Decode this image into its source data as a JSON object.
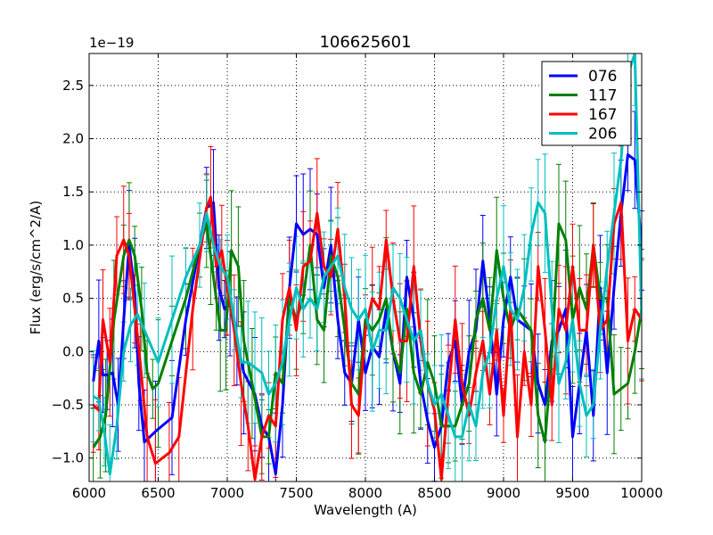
{
  "chart_data": {
    "type": "line",
    "title": "106625601",
    "xlabel": "Wavelength (A)",
    "ylabel": "Flux (erg/s/cm^2/A)",
    "offset_text": "1e−19",
    "scale": 1e-19,
    "xlim": [
      6000,
      10000
    ],
    "ylim": [
      -1.22,
      2.8
    ],
    "xticks": [
      6000,
      6500,
      7000,
      7500,
      8000,
      8500,
      9000,
      9500,
      10000
    ],
    "yticks": [
      -1.0,
      -0.5,
      0.0,
      0.5,
      1.0,
      1.5,
      2.0,
      2.5
    ],
    "ytick_labels": [
      "−1.0",
      "−0.5",
      "0.0",
      "0.5",
      "1.0",
      "1.5",
      "2.0",
      "2.5"
    ],
    "grid": true,
    "legend_position": "top-right",
    "series": [
      {
        "name": "076",
        "color": "#0000ff",
        "points": [
          [
            6030,
            -0.28
          ],
          [
            6070,
            0.1
          ],
          [
            6100,
            -0.22
          ],
          [
            6130,
            -0.22
          ],
          [
            6170,
            -0.2
          ],
          [
            6210,
            -0.5
          ],
          [
            6250,
            0.3
          ],
          [
            6290,
            1.0
          ],
          [
            6330,
            0.55
          ],
          [
            6360,
            -0.3
          ],
          [
            6400,
            -0.85
          ],
          [
            6480,
            -0.75
          ],
          [
            6600,
            -0.62
          ],
          [
            6700,
            0.3
          ],
          [
            6850,
            1.35
          ],
          [
            6900,
            1.4
          ],
          [
            6940,
            0.6
          ],
          [
            6980,
            0.4
          ],
          [
            7020,
            0.45
          ],
          [
            7070,
            0.1
          ],
          [
            7120,
            -0.2
          ],
          [
            7200,
            -0.4
          ],
          [
            7250,
            -0.7
          ],
          [
            7300,
            -0.8
          ],
          [
            7350,
            -1.15
          ],
          [
            7400,
            -0.5
          ],
          [
            7450,
            0.6
          ],
          [
            7500,
            1.2
          ],
          [
            7550,
            1.1
          ],
          [
            7600,
            1.15
          ],
          [
            7650,
            1.1
          ],
          [
            7700,
            0.6
          ],
          [
            7750,
            1.0
          ],
          [
            7800,
            0.3
          ],
          [
            7850,
            -0.2
          ],
          [
            7900,
            -0.3
          ],
          [
            7950,
            0.3
          ],
          [
            8000,
            -0.2
          ],
          [
            8050,
            0.05
          ],
          [
            8100,
            -0.05
          ],
          [
            8150,
            0.4
          ],
          [
            8200,
            0.0
          ],
          [
            8250,
            -0.3
          ],
          [
            8300,
            0.7
          ],
          [
            8350,
            0.3
          ],
          [
            8400,
            -0.3
          ],
          [
            8450,
            -0.65
          ],
          [
            8500,
            -0.9
          ],
          [
            8550,
            -0.7
          ],
          [
            8600,
            -0.1
          ],
          [
            8650,
            0.1
          ],
          [
            8700,
            -0.5
          ],
          [
            8750,
            0.0
          ],
          [
            8800,
            0.2
          ],
          [
            8850,
            0.85
          ],
          [
            8900,
            0.3
          ],
          [
            8950,
            -0.4
          ],
          [
            9000,
            0.3
          ],
          [
            9050,
            0.7
          ],
          [
            9100,
            0.3
          ],
          [
            9150,
            0.25
          ],
          [
            9200,
            0.2
          ],
          [
            9250,
            -0.3
          ],
          [
            9300,
            -0.5
          ],
          [
            9350,
            0.1
          ],
          [
            9400,
            0.2
          ],
          [
            9450,
            0.4
          ],
          [
            9500,
            -0.8
          ],
          [
            9550,
            -0.3
          ],
          [
            9600,
            0.2
          ],
          [
            9650,
            -0.6
          ],
          [
            9700,
            0.6
          ],
          [
            9750,
            -0.2
          ],
          [
            9800,
            0.6
          ],
          [
            9850,
            1.3
          ],
          [
            9900,
            1.85
          ],
          [
            9950,
            1.8
          ],
          [
            10000,
            0.95
          ]
        ]
      },
      {
        "name": "117",
        "color": "#008000",
        "points": [
          [
            6030,
            -0.9
          ],
          [
            6080,
            -0.8
          ],
          [
            6120,
            -0.6
          ],
          [
            6180,
            0.3
          ],
          [
            6250,
            0.9
          ],
          [
            6290,
            1.05
          ],
          [
            6330,
            0.9
          ],
          [
            6380,
            0.4
          ],
          [
            6420,
            -0.2
          ],
          [
            6460,
            -0.35
          ],
          [
            6500,
            -0.3
          ],
          [
            6600,
            0.1
          ],
          [
            6700,
            0.5
          ],
          [
            6800,
            1.0
          ],
          [
            6850,
            1.2
          ],
          [
            6880,
            0.9
          ],
          [
            6920,
            0.5
          ],
          [
            6950,
            0.2
          ],
          [
            6990,
            0.2
          ],
          [
            7030,
            0.95
          ],
          [
            7080,
            0.8
          ],
          [
            7120,
            0.1
          ],
          [
            7180,
            -0.3
          ],
          [
            7250,
            -0.8
          ],
          [
            7300,
            -0.8
          ],
          [
            7350,
            -0.2
          ],
          [
            7400,
            -0.3
          ],
          [
            7450,
            0.5
          ],
          [
            7500,
            0.3
          ],
          [
            7550,
            0.5
          ],
          [
            7600,
            1.0
          ],
          [
            7650,
            0.3
          ],
          [
            7700,
            0.2
          ],
          [
            7750,
            0.9
          ],
          [
            7800,
            0.7
          ],
          [
            7850,
            0.2
          ],
          [
            7900,
            -0.3
          ],
          [
            7950,
            -0.4
          ],
          [
            8000,
            0.3
          ],
          [
            8050,
            0.2
          ],
          [
            8100,
            0.3
          ],
          [
            8150,
            0.5
          ],
          [
            8200,
            0.0
          ],
          [
            8250,
            -0.2
          ],
          [
            8300,
            0.4
          ],
          [
            8350,
            -0.2
          ],
          [
            8400,
            -0.4
          ],
          [
            8450,
            -0.1
          ],
          [
            8500,
            -0.3
          ],
          [
            8550,
            -0.7
          ],
          [
            8600,
            -0.7
          ],
          [
            8650,
            -0.7
          ],
          [
            8700,
            -0.5
          ],
          [
            8750,
            -0.3
          ],
          [
            8800,
            0.3
          ],
          [
            8850,
            0.5
          ],
          [
            8900,
            0.2
          ],
          [
            8950,
            0.95
          ],
          [
            9000,
            0.5
          ],
          [
            9050,
            0.2
          ],
          [
            9100,
            0.4
          ],
          [
            9150,
            0.3
          ],
          [
            9200,
            0.2
          ],
          [
            9250,
            -0.6
          ],
          [
            9300,
            -0.85
          ],
          [
            9350,
            0.0
          ],
          [
            9400,
            1.2
          ],
          [
            9450,
            1.05
          ],
          [
            9500,
            0.3
          ],
          [
            9550,
            0.6
          ],
          [
            9600,
            0.4
          ],
          [
            9650,
            1.0
          ],
          [
            9700,
            0.5
          ],
          [
            9750,
            0.5
          ],
          [
            9800,
            -0.4
          ],
          [
            9850,
            -0.35
          ],
          [
            9900,
            -0.3
          ],
          [
            9950,
            0.0
          ],
          [
            10000,
            0.4
          ]
        ]
      },
      {
        "name": "167",
        "color": "#ff0000",
        "points": [
          [
            6030,
            -0.5
          ],
          [
            6070,
            -0.55
          ],
          [
            6100,
            0.3
          ],
          [
            6150,
            -0.1
          ],
          [
            6200,
            0.9
          ],
          [
            6250,
            1.05
          ],
          [
            6290,
            0.9
          ],
          [
            6330,
            0.4
          ],
          [
            6370,
            -0.1
          ],
          [
            6420,
            -0.8
          ],
          [
            6480,
            -1.05
          ],
          [
            6580,
            -0.95
          ],
          [
            6650,
            -0.8
          ],
          [
            6750,
            0.4
          ],
          [
            6850,
            1.35
          ],
          [
            6880,
            1.45
          ],
          [
            6920,
            0.8
          ],
          [
            6960,
            0.95
          ],
          [
            7000,
            0.6
          ],
          [
            7050,
            0.2
          ],
          [
            7100,
            -0.3
          ],
          [
            7150,
            -0.7
          ],
          [
            7200,
            -1.2
          ],
          [
            7250,
            -0.8
          ],
          [
            7300,
            -0.6
          ],
          [
            7350,
            -0.7
          ],
          [
            7400,
            0.3
          ],
          [
            7450,
            0.6
          ],
          [
            7500,
            0.2
          ],
          [
            7550,
            0.8
          ],
          [
            7600,
            0.85
          ],
          [
            7650,
            1.3
          ],
          [
            7700,
            0.8
          ],
          [
            7750,
            0.7
          ],
          [
            7800,
            1.15
          ],
          [
            7850,
            0.5
          ],
          [
            7900,
            -0.5
          ],
          [
            7950,
            -0.6
          ],
          [
            8000,
            0.2
          ],
          [
            8050,
            0.5
          ],
          [
            8100,
            0.4
          ],
          [
            8150,
            1.05
          ],
          [
            8200,
            0.5
          ],
          [
            8250,
            0.1
          ],
          [
            8300,
            0.1
          ],
          [
            8350,
            0.8
          ],
          [
            8400,
            0.1
          ],
          [
            8450,
            -0.3
          ],
          [
            8500,
            -0.55
          ],
          [
            8550,
            -1.2
          ],
          [
            8600,
            -0.4
          ],
          [
            8650,
            0.3
          ],
          [
            8700,
            -0.3
          ],
          [
            8750,
            -0.6
          ],
          [
            8800,
            -0.2
          ],
          [
            8850,
            0.1
          ],
          [
            8900,
            -0.4
          ],
          [
            8950,
            0.2
          ],
          [
            9000,
            -0.6
          ],
          [
            9050,
            0.4
          ],
          [
            9100,
            -0.8
          ],
          [
            9150,
            0.0
          ],
          [
            9200,
            -0.5
          ],
          [
            9250,
            0.8
          ],
          [
            9300,
            0.2
          ],
          [
            9350,
            -0.5
          ],
          [
            9400,
            0.4
          ],
          [
            9450,
            0.2
          ],
          [
            9500,
            0.8
          ],
          [
            9550,
            0.2
          ],
          [
            9600,
            0.2
          ],
          [
            9650,
            1.0
          ],
          [
            9700,
            0.2
          ],
          [
            9750,
            0.3
          ],
          [
            9800,
            1.2
          ],
          [
            9850,
            1.4
          ],
          [
            9900,
            0.1
          ],
          [
            9950,
            0.4
          ],
          [
            10000,
            0.3
          ]
        ]
      },
      {
        "name": "206",
        "color": "#00bfbf",
        "points": [
          [
            6030,
            -0.42
          ],
          [
            6070,
            -0.45
          ],
          [
            6110,
            -0.75
          ],
          [
            6150,
            -1.15
          ],
          [
            6200,
            -0.7
          ],
          [
            6250,
            0.0
          ],
          [
            6300,
            0.25
          ],
          [
            6350,
            0.35
          ],
          [
            6400,
            0.2
          ],
          [
            6500,
            -0.1
          ],
          [
            6600,
            0.3
          ],
          [
            6700,
            0.7
          ],
          [
            6800,
            1.0
          ],
          [
            6850,
            1.3
          ],
          [
            6900,
            1.0
          ],
          [
            6950,
            0.8
          ],
          [
            7000,
            0.7
          ],
          [
            7050,
            0.3
          ],
          [
            7100,
            -0.1
          ],
          [
            7150,
            -0.1
          ],
          [
            7200,
            -0.15
          ],
          [
            7250,
            -0.2
          ],
          [
            7300,
            -0.4
          ],
          [
            7350,
            -0.3
          ],
          [
            7400,
            -0.1
          ],
          [
            7450,
            0.3
          ],
          [
            7500,
            0.6
          ],
          [
            7550,
            0.4
          ],
          [
            7600,
            0.5
          ],
          [
            7650,
            0.4
          ],
          [
            7700,
            0.7
          ],
          [
            7750,
            0.8
          ],
          [
            7800,
            0.9
          ],
          [
            7850,
            0.6
          ],
          [
            7900,
            0.4
          ],
          [
            7950,
            0.3
          ],
          [
            8000,
            0.4
          ],
          [
            8050,
            0.0
          ],
          [
            8100,
            0.2
          ],
          [
            8150,
            0.2
          ],
          [
            8200,
            0.6
          ],
          [
            8250,
            0.5
          ],
          [
            8300,
            0.3
          ],
          [
            8350,
            0.1
          ],
          [
            8400,
            0.2
          ],
          [
            8450,
            -0.3
          ],
          [
            8500,
            -0.5
          ],
          [
            8550,
            -0.4
          ],
          [
            8600,
            -0.6
          ],
          [
            8650,
            -0.8
          ],
          [
            8700,
            -0.8
          ],
          [
            8750,
            -0.5
          ],
          [
            8800,
            -0.7
          ],
          [
            8850,
            -0.2
          ],
          [
            8900,
            0.0
          ],
          [
            8950,
            0.5
          ],
          [
            9000,
            0.8
          ],
          [
            9050,
            0.4
          ],
          [
            9100,
            0.3
          ],
          [
            9150,
            0.6
          ],
          [
            9200,
            1.1
          ],
          [
            9250,
            1.4
          ],
          [
            9300,
            1.3
          ],
          [
            9350,
            0.4
          ],
          [
            9400,
            -0.3
          ],
          [
            9450,
            -0.1
          ],
          [
            9500,
            0.3
          ],
          [
            9550,
            -0.3
          ],
          [
            9600,
            -0.6
          ],
          [
            9650,
            -0.5
          ],
          [
            9700,
            0.2
          ],
          [
            9750,
            0.8
          ],
          [
            9800,
            1.3
          ],
          [
            9850,
            1.8
          ],
          [
            9900,
            2.6
          ],
          [
            9950,
            2.8
          ],
          [
            10000,
            0.3
          ]
        ]
      }
    ]
  }
}
